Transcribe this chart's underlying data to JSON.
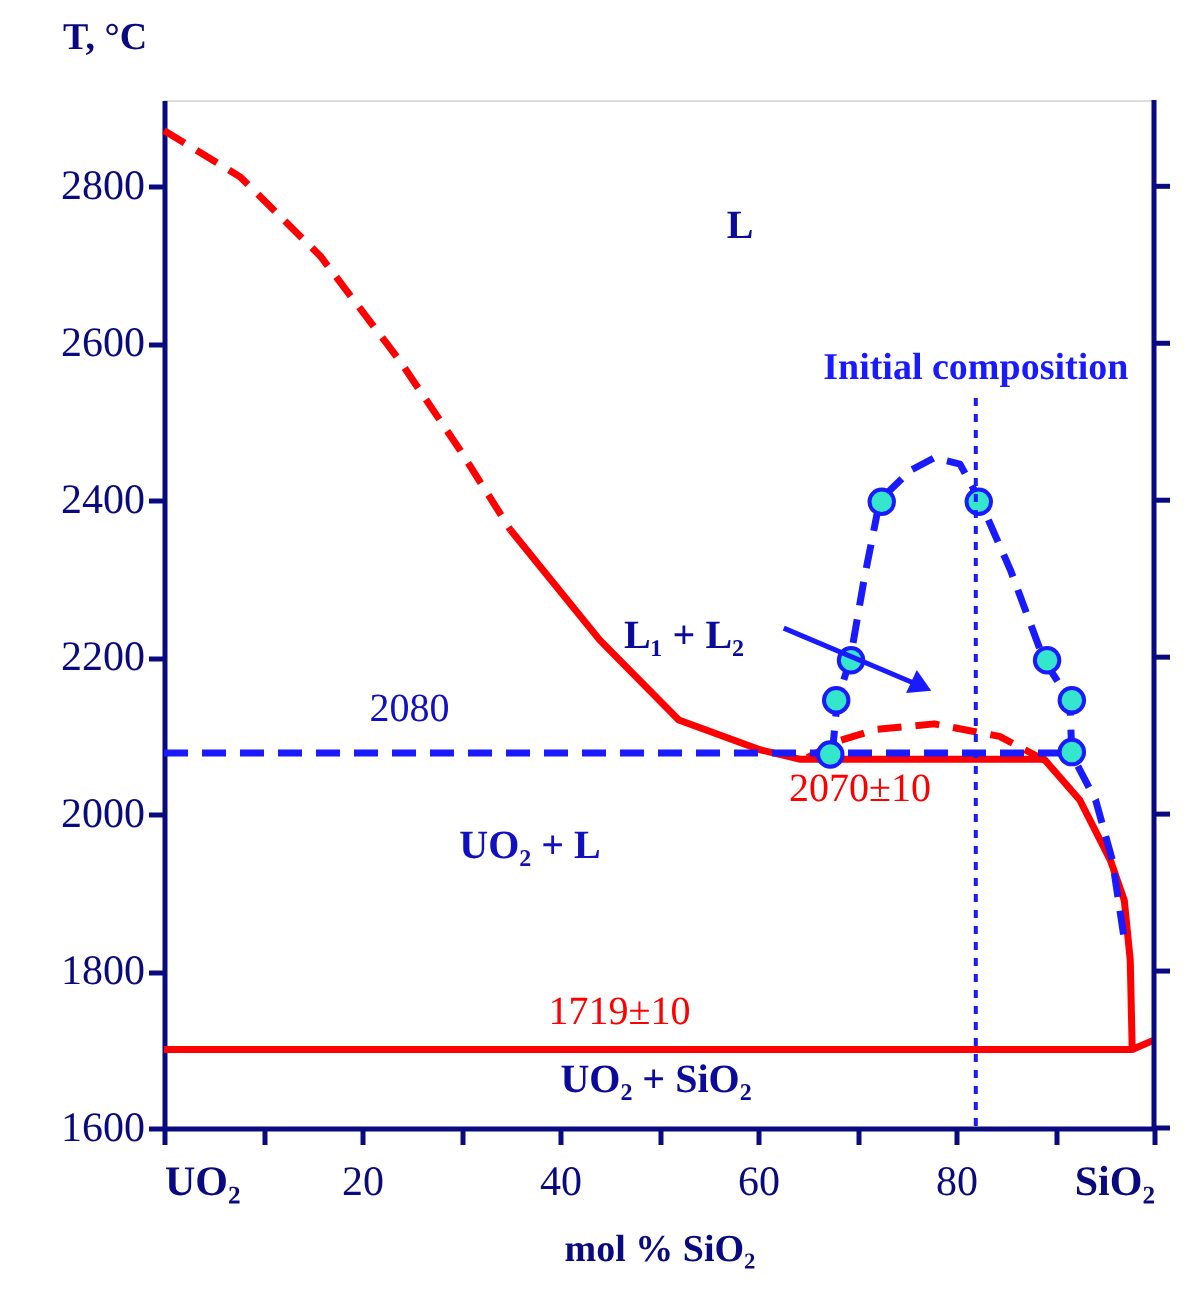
{
  "chart_data": {
    "type": "line",
    "xlabel": "mol % SiO₂",
    "ylabel": "T, °C",
    "xlim": [
      0,
      100
    ],
    "ylim": [
      1600,
      2910
    ],
    "xticks": [
      {
        "value": 0,
        "label": "UO₂"
      },
      {
        "value": 10,
        "label": null
      },
      20,
      {
        "value": 30,
        "label": null
      },
      40,
      {
        "value": 50,
        "label": null
      },
      60,
      {
        "value": 70,
        "label": null
      },
      80,
      {
        "value": 90,
        "label": null
      },
      {
        "value": 100,
        "label": "SiO₂"
      }
    ],
    "yticks": [
      1600,
      1800,
      2000,
      2200,
      2400,
      2600,
      2800
    ],
    "grid": false,
    "series": [
      {
        "color": "#ff0000",
        "line_style": "dashed",
        "x": [
          0,
          7.7,
          15.8,
          23.8,
          29.9,
          35
        ],
        "values": [
          2871,
          2812,
          2711,
          2578,
          2464,
          2362
        ]
      },
      {
        "color": "#ff0000",
        "line_style": "solid",
        "x": [
          35,
          44,
          52,
          60.2,
          64.2,
          75,
          88.9,
          92.5,
          95.6,
          97,
          97.6,
          97.8,
          100
        ],
        "values": [
          2362,
          2222,
          2120,
          2082,
          2070,
          2070,
          2070,
          2018,
          1941,
          1890,
          1814,
          1700,
          1712
        ]
      },
      {
        "color": "#ff0000",
        "line_style": "dashed",
        "x": [
          65,
          68.3,
          72,
          77.8,
          84.4,
          88.9
        ],
        "values": [
          2072,
          2094,
          2108,
          2115,
          2099,
          2069
        ]
      },
      {
        "color": "#ff0000",
        "line_style": "solid",
        "x": [
          0,
          97.8
        ],
        "values": [
          1700,
          1700
        ]
      },
      {
        "color": "#1a1aff",
        "line_style": "dashed",
        "x": [
          0,
          92
        ],
        "values": [
          2078,
          2078
        ]
      },
      {
        "color": "#1a1aff",
        "line_style": "dashed",
        "x": [
          67.5,
          68,
          69.3,
          70.7,
          72.3,
          75.4,
          77.8,
          80.4,
          82.4,
          85.5,
          88.9,
          91.5,
          91.7,
          94.1,
          95.8,
          97
        ],
        "values": [
          2076,
          2145,
          2196,
          2298,
          2400,
          2438,
          2454,
          2446,
          2400,
          2311,
          2196,
          2145,
          2076,
          2018,
          1941,
          1840
        ]
      },
      {
        "type": "scatter",
        "color": "#33e6cc",
        "marker": "circle",
        "x": [
          67.3,
          67.9,
          69.4,
          72.5,
          82.3,
          89.2,
          91.7,
          91.7
        ],
        "values": [
          2076,
          2145,
          2196,
          2398,
          2398,
          2196,
          2145,
          2079
        ]
      }
    ],
    "ref_lines": [
      {
        "axis": "x",
        "value": 82,
        "label": "Initial composition",
        "color": "#1a1aff",
        "line_style": "dotted"
      }
    ],
    "annotations": [
      "L",
      "L₁ + L₂",
      "UO₂ + L",
      {
        "text": "2080",
        "x": 24.8,
        "y": 2078
      },
      {
        "text": "2070±10",
        "x": 70.3,
        "y": 2070
      },
      {
        "text": "1719±10",
        "x": 46,
        "y": 1700
      },
      "UO₂ + SiO₂"
    ]
  }
}
